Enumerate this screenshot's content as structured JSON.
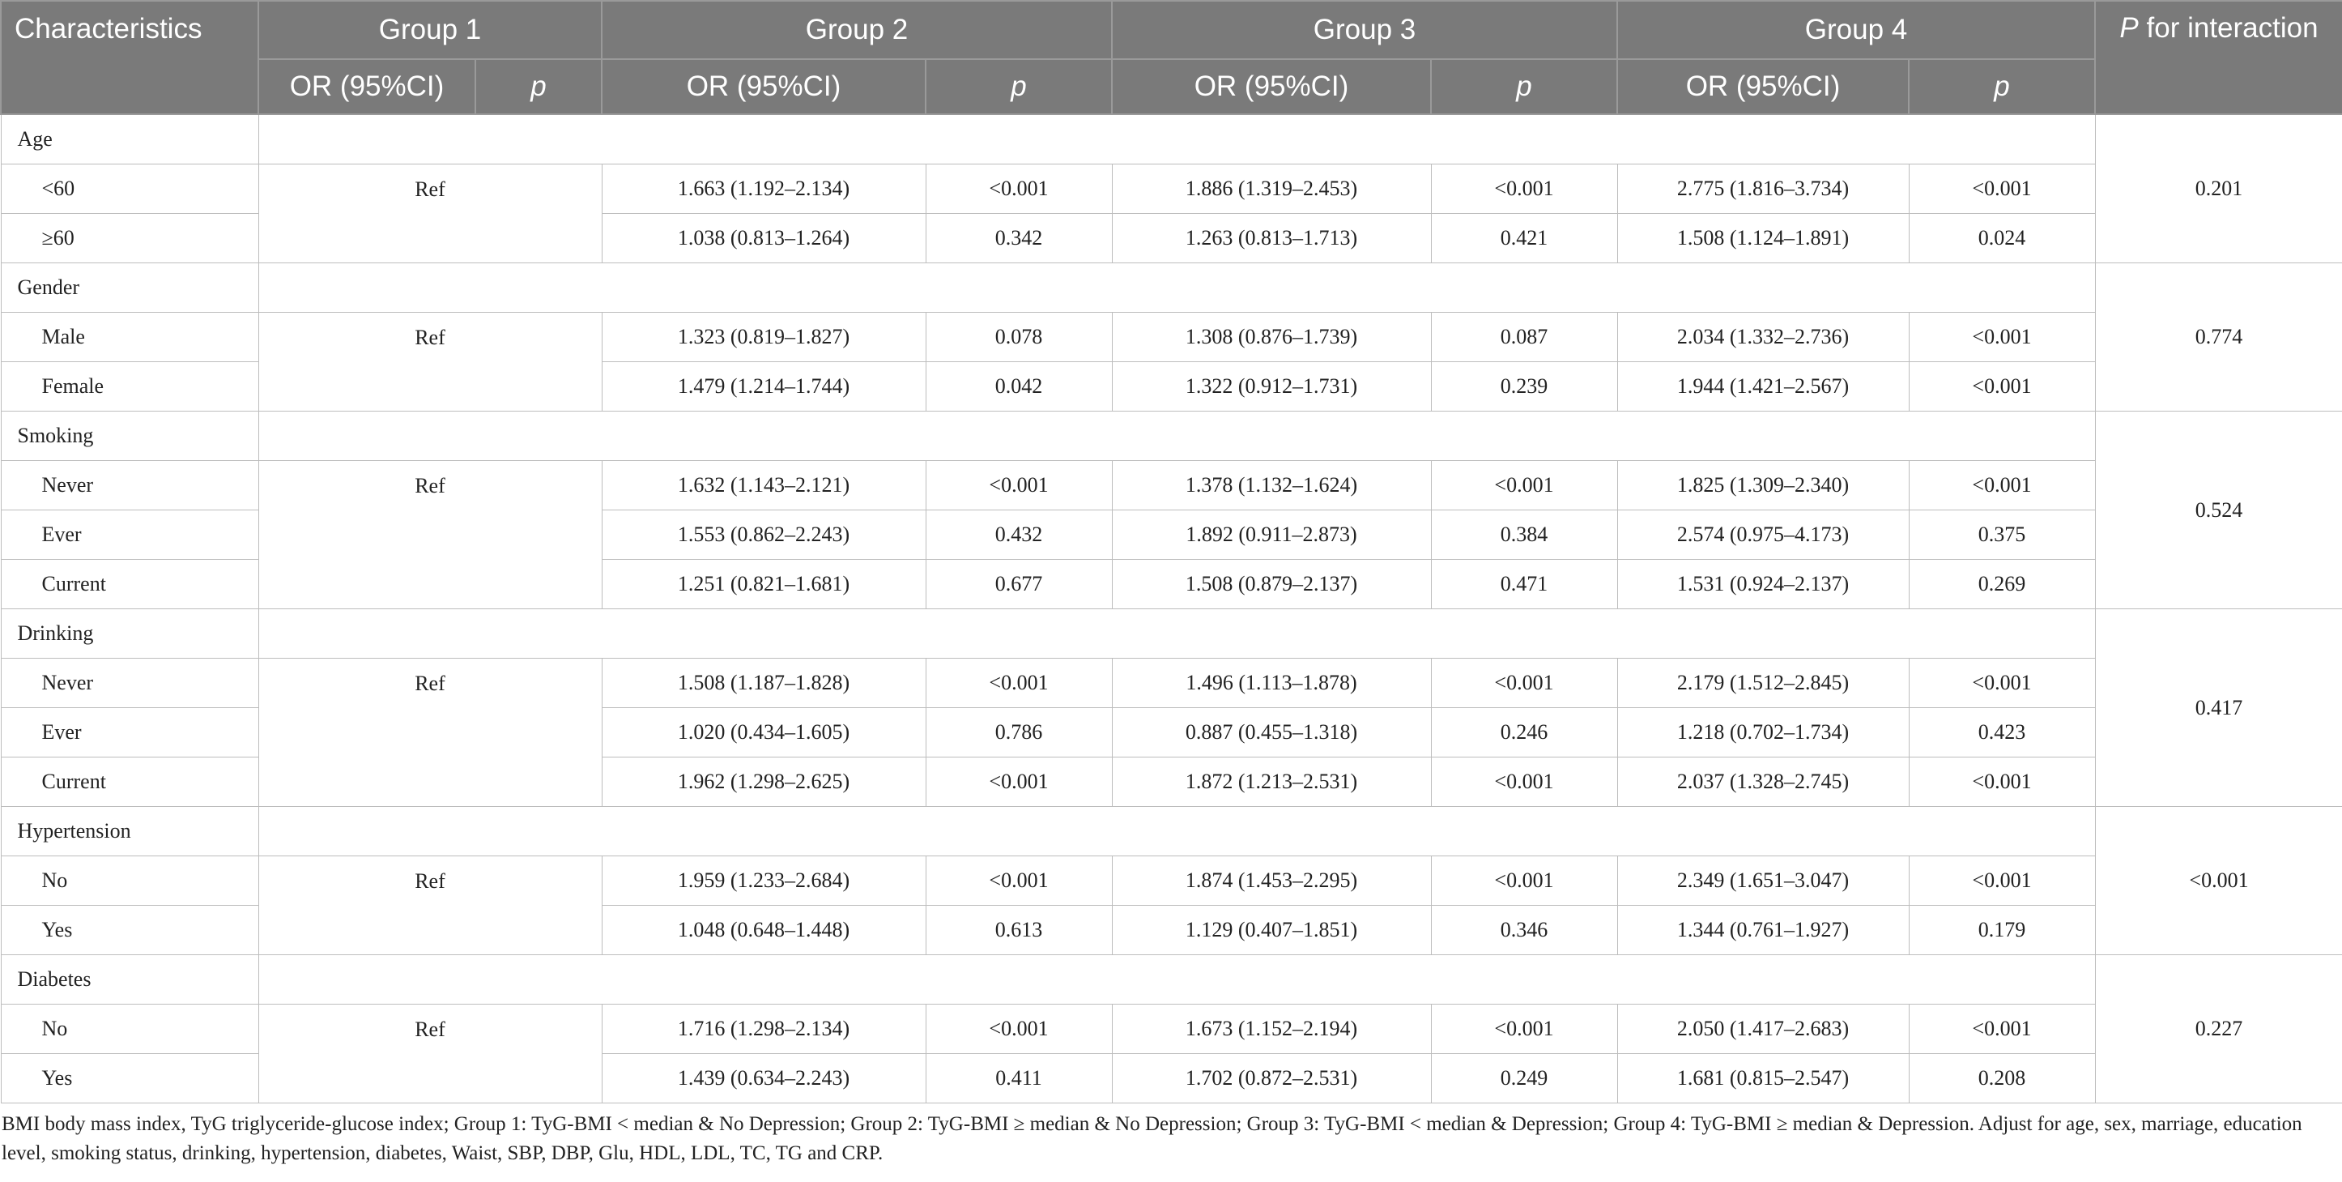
{
  "header": {
    "characteristics": "Characteristics",
    "groups": [
      "Group 1",
      "Group 2",
      "Group 3",
      "Group 4"
    ],
    "or_label": "OR (95%CI)",
    "p_label": "p",
    "p_interaction_1": "P",
    "p_interaction_2": " for interaction"
  },
  "sections": [
    {
      "name": "Age",
      "ref": "Ref",
      "p_interaction": "0.201",
      "rows": [
        {
          "label": "<60",
          "g2_or": "1.663 (1.192–2.134)",
          "g2_p": "<0.001",
          "g3_or": "1.886 (1.319–2.453)",
          "g3_p": "<0.001",
          "g4_or": "2.775 (1.816–3.734)",
          "g4_p": "<0.001"
        },
        {
          "label": "≥60",
          "g2_or": "1.038 (0.813–1.264)",
          "g2_p": "0.342",
          "g3_or": "1.263 (0.813–1.713)",
          "g3_p": "0.421",
          "g4_or": "1.508 (1.124–1.891)",
          "g4_p": "0.024"
        }
      ]
    },
    {
      "name": "Gender",
      "ref": "Ref",
      "p_interaction": "0.774",
      "rows": [
        {
          "label": "Male",
          "g2_or": "1.323 (0.819–1.827)",
          "g2_p": "0.078",
          "g3_or": "1.308 (0.876–1.739)",
          "g3_p": "0.087",
          "g4_or": "2.034 (1.332–2.736)",
          "g4_p": "<0.001"
        },
        {
          "label": "Female",
          "g2_or": "1.479 (1.214–1.744)",
          "g2_p": "0.042",
          "g3_or": "1.322 (0.912–1.731)",
          "g3_p": "0.239",
          "g4_or": "1.944 (1.421–2.567)",
          "g4_p": "<0.001"
        }
      ]
    },
    {
      "name": "Smoking",
      "ref": "Ref",
      "p_interaction": "0.524",
      "rows": [
        {
          "label": "Never",
          "g2_or": "1.632 (1.143–2.121)",
          "g2_p": "<0.001",
          "g3_or": "1.378 (1.132–1.624)",
          "g3_p": "<0.001",
          "g4_or": "1.825 (1.309–2.340)",
          "g4_p": "<0.001"
        },
        {
          "label": "Ever",
          "g2_or": "1.553 (0.862–2.243)",
          "g2_p": "0.432",
          "g3_or": "1.892 (0.911–2.873)",
          "g3_p": "0.384",
          "g4_or": "2.574 (0.975–4.173)",
          "g4_p": "0.375"
        },
        {
          "label": "Current",
          "g2_or": "1.251 (0.821–1.681)",
          "g2_p": "0.677",
          "g3_or": "1.508 (0.879–2.137)",
          "g3_p": "0.471",
          "g4_or": "1.531 (0.924–2.137)",
          "g4_p": "0.269"
        }
      ]
    },
    {
      "name": "Drinking",
      "ref": "Ref",
      "p_interaction": "0.417",
      "rows": [
        {
          "label": "Never",
          "g2_or": "1.508 (1.187–1.828)",
          "g2_p": "<0.001",
          "g3_or": "1.496 (1.113–1.878)",
          "g3_p": "<0.001",
          "g4_or": "2.179 (1.512–2.845)",
          "g4_p": "<0.001"
        },
        {
          "label": "Ever",
          "g2_or": "1.020 (0.434–1.605)",
          "g2_p": "0.786",
          "g3_or": "0.887 (0.455–1.318)",
          "g3_p": "0.246",
          "g4_or": "1.218 (0.702–1.734)",
          "g4_p": "0.423"
        },
        {
          "label": "Current",
          "g2_or": "1.962 (1.298–2.625)",
          "g2_p": "<0.001",
          "g3_or": "1.872 (1.213–2.531)",
          "g3_p": "<0.001",
          "g4_or": "2.037 (1.328–2.745)",
          "g4_p": "<0.001"
        }
      ]
    },
    {
      "name": "Hypertension",
      "ref": "Ref",
      "p_interaction": "<0.001",
      "rows": [
        {
          "label": "No",
          "g2_or": "1.959 (1.233–2.684)",
          "g2_p": "<0.001",
          "g3_or": "1.874 (1.453–2.295)",
          "g3_p": "<0.001",
          "g4_or": "2.349 (1.651–3.047)",
          "g4_p": "<0.001"
        },
        {
          "label": "Yes",
          "g2_or": "1.048 (0.648–1.448)",
          "g2_p": "0.613",
          "g3_or": "1.129 (0.407–1.851)",
          "g3_p": "0.346",
          "g4_or": "1.344 (0.761–1.927)",
          "g4_p": "0.179"
        }
      ]
    },
    {
      "name": "Diabetes",
      "ref": "Ref",
      "p_interaction": "0.227",
      "rows": [
        {
          "label": "No",
          "g2_or": "1.716 (1.298–2.134)",
          "g2_p": "<0.001",
          "g3_or": "1.673 (1.152–2.194)",
          "g3_p": "<0.001",
          "g4_or": "2.050 (1.417–2.683)",
          "g4_p": "<0.001"
        },
        {
          "label": "Yes",
          "g2_or": "1.439 (0.634–2.243)",
          "g2_p": "0.411",
          "g3_or": "1.702 (0.872–2.531)",
          "g3_p": "0.249",
          "g4_or": "1.681 (0.815–2.547)",
          "g4_p": "0.208"
        }
      ]
    }
  ],
  "footnote": "BMI body mass index, TyG triglyceride-glucose index; Group 1: TyG-BMI < median & No Depression; Group 2: TyG-BMI ≥ median & No Depression; Group 3: TyG-BMI < median & Depression; Group 4: TyG-BMI ≥ median & Depression. Adjust for age, sex, marriage, education level, smoking status, drinking, hypertension, diabetes, Waist, SBP, DBP, Glu, HDL, LDL, TC, TG and CRP."
}
